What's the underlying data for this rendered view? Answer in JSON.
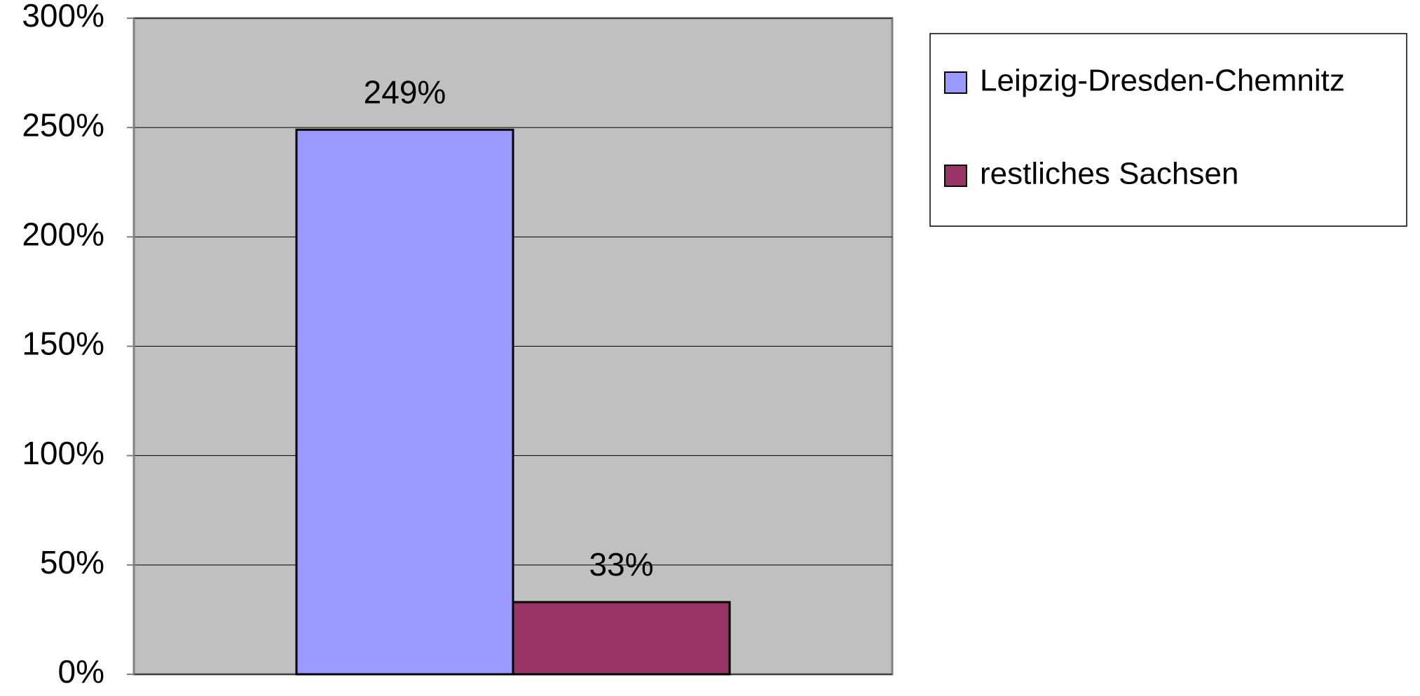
{
  "chart_data": {
    "type": "bar",
    "categories": [
      null
    ],
    "series": [
      {
        "name": "Leipzig-Dresden-Chemnitz",
        "color": "#9999ff",
        "values": [
          249
        ],
        "value_labels": [
          "249%"
        ]
      },
      {
        "name": "restliches Sachsen",
        "color": "#993366",
        "values": [
          33
        ],
        "value_labels": [
          "33%"
        ]
      }
    ],
    "ylim": [
      0,
      300
    ],
    "yticks": [
      {
        "value": 0,
        "label": "0%"
      },
      {
        "value": 50,
        "label": "50%"
      },
      {
        "value": 100,
        "label": "100%"
      },
      {
        "value": 150,
        "label": "150%"
      },
      {
        "value": 200,
        "label": "200%"
      },
      {
        "value": 250,
        "label": "250%"
      },
      {
        "value": 300,
        "label": "300%"
      }
    ],
    "grid": true,
    "plot_background": "#c0c0c0",
    "legend": "right"
  }
}
